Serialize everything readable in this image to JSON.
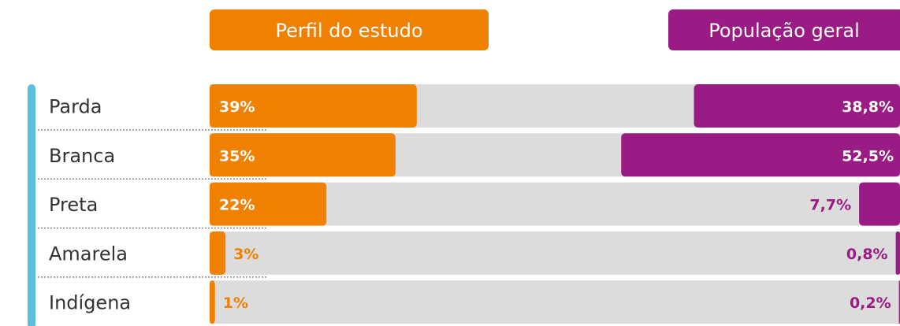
{
  "chart_data": {
    "type": "diverging_bar",
    "categories": [
      "Parda",
      "Branca",
      "Preta",
      "Amarela",
      "Indígena"
    ],
    "series": [
      {
        "name": "Perfil do estudo",
        "color": "#f08000",
        "values": [
          39,
          35,
          22,
          3,
          1
        ],
        "value_labels": [
          "39%",
          "35%",
          "22%",
          "3%",
          "1%"
        ]
      },
      {
        "name": "População geral",
        "color": "#9b1b84",
        "values": [
          38.8,
          52.5,
          7.7,
          0.8,
          0.2
        ],
        "value_labels": [
          "38,8%",
          "52,5%",
          "7,7%",
          "0,8%",
          "0,2%"
        ]
      }
    ],
    "xlim": [
      0,
      130
    ]
  }
}
